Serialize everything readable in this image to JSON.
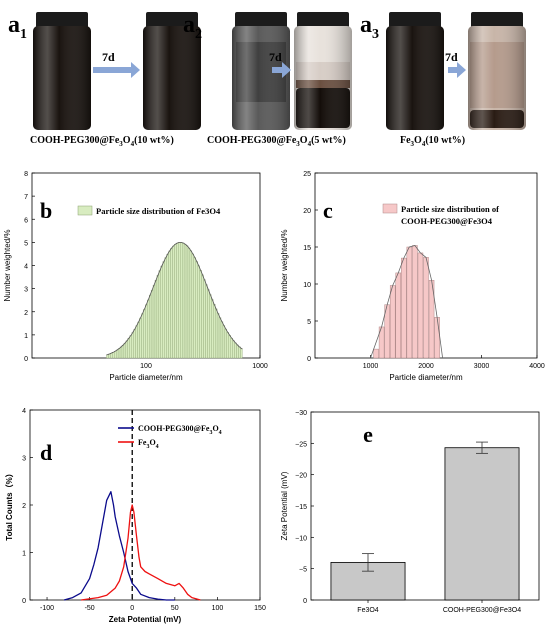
{
  "panel_a": {
    "groups": [
      {
        "letter": "a",
        "sub": "1",
        "arrow": "7d",
        "caption_pre": "COOH-PEG300@Fe",
        "caption_sub1": "3",
        "caption_mid": "O",
        "caption_sub2": "4",
        "caption_post": "(10 wt%)"
      },
      {
        "letter": "a",
        "sub": "2",
        "arrow": "7d",
        "caption_pre": "COOH-PEG300@Fe",
        "caption_sub1": "3",
        "caption_mid": "O",
        "caption_sub2": "4",
        "caption_post": "(5 wt%)"
      },
      {
        "letter": "a",
        "sub": "3",
        "arrow": "7d",
        "caption_pre": "Fe",
        "caption_sub1": "3",
        "caption_mid": "O",
        "caption_sub2": "4",
        "caption_post": "(10 wt%)"
      }
    ],
    "colors": {
      "dark_fluid": "#1a1410",
      "settled_top": "#c8b5a8",
      "cap": "#1b1b1b",
      "arrow": "#8aa6d6"
    }
  },
  "chart_data": [
    {
      "id": "b",
      "type": "bar",
      "letter": "b",
      "legend": "Particle size distribution of Fe3O4",
      "xlabel": "Particle diameter/nm",
      "ylabel": "Number weighted/%",
      "xscale": "log",
      "xlim": [
        10,
        1000
      ],
      "ylim": [
        0,
        8
      ],
      "yticks": [
        0,
        1,
        2,
        3,
        4,
        5,
        6,
        7,
        8
      ],
      "xticks": [
        {
          "v": 100,
          "label": "100"
        },
        {
          "v": 1000,
          "label": "1000"
        }
      ],
      "color": "#d8ecc0",
      "edge": "#8aa070",
      "curve_peak": {
        "x": 200,
        "y": 5.0,
        "x_min": 45,
        "x_max": 700
      }
    },
    {
      "id": "c",
      "type": "bar",
      "letter": "c",
      "legend_line1": "Particle size distribution of",
      "legend_line2": "COOH-PEG300@Fe3O4",
      "xlabel": "Particle diameter/nm",
      "ylabel": "Number weighted/%",
      "xlim": [
        0,
        4000
      ],
      "ylim": [
        0,
        25
      ],
      "yticks": [
        0,
        5,
        10,
        15,
        20,
        25
      ],
      "xticks": [
        1000,
        2000,
        3000,
        4000
      ],
      "color": "#f6c8c8",
      "edge": "#b08888",
      "x": [
        1100,
        1200,
        1300,
        1400,
        1500,
        1600,
        1700,
        1800,
        1900,
        2000,
        2100,
        2200
      ],
      "values": [
        1.2,
        4.2,
        7.2,
        9.8,
        11.5,
        13.5,
        15.0,
        15.2,
        14.2,
        13.6,
        10.5,
        5.5
      ],
      "line_x": [
        1000,
        1200,
        1300,
        1400,
        1500,
        1600,
        1700,
        1800,
        1900,
        2000,
        2100,
        2200,
        2300
      ],
      "line_y": [
        0,
        4.2,
        7.2,
        9.8,
        11.5,
        13.5,
        15.0,
        15.2,
        14.2,
        13.6,
        10.5,
        5.5,
        0
      ]
    },
    {
      "id": "d",
      "type": "line",
      "letter": "d",
      "xlabel": "Zeta Potential (mV)",
      "ylabel": "Total Counts（%）",
      "xlim": [
        -120,
        150
      ],
      "ylim": [
        0,
        4
      ],
      "xticks": [
        -100,
        -50,
        0,
        50,
        100,
        150
      ],
      "yticks": [
        0,
        1,
        2,
        3,
        4
      ],
      "series": [
        {
          "name_pre": "COOH-PEG300@Fe",
          "name_sub1": "3",
          "name_mid": "O",
          "name_sub2": "4",
          "color": "#0b0b8c",
          "x": [
            -80,
            -70,
            -60,
            -50,
            -45,
            -40,
            -35,
            -30,
            -25,
            -22,
            -20,
            -15,
            -10,
            -5,
            0,
            5,
            10,
            20,
            30,
            40,
            50
          ],
          "y": [
            0,
            0.05,
            0.15,
            0.45,
            0.75,
            1.1,
            1.6,
            2.1,
            2.28,
            2.0,
            1.75,
            1.35,
            1.0,
            0.6,
            0.35,
            0.25,
            0.12,
            0.05,
            0.02,
            0,
            0
          ]
        },
        {
          "name_pre": "Fe",
          "name_sub1": "3",
          "name_mid": "O",
          "name_sub2": "4",
          "color": "#ee1111",
          "x": [
            -60,
            -40,
            -30,
            -20,
            -15,
            -10,
            -5,
            -2,
            0,
            2,
            5,
            8,
            10,
            15,
            20,
            30,
            40,
            50,
            55,
            60,
            65,
            70,
            80
          ],
          "y": [
            0,
            0.05,
            0.1,
            0.25,
            0.4,
            0.7,
            1.3,
            1.85,
            2.0,
            1.85,
            1.35,
            0.9,
            0.7,
            0.6,
            0.55,
            0.45,
            0.35,
            0.3,
            0.35,
            0.25,
            0.12,
            0.05,
            0
          ]
        }
      ],
      "dashed_x": 0
    },
    {
      "id": "e",
      "type": "bar",
      "letter": "e",
      "ylabel": "Zeta Potential (mV)",
      "categories": [
        "Fe3O4",
        "COOH-PEG300@Fe3O4"
      ],
      "values": [
        -6.0,
        -24.3
      ],
      "errors": [
        1.4,
        0.9
      ],
      "ylim": [
        0,
        -30
      ],
      "yticks": [
        0,
        -5,
        -10,
        -15,
        -20,
        -25,
        -30
      ],
      "color": "#c8c8c8"
    }
  ]
}
